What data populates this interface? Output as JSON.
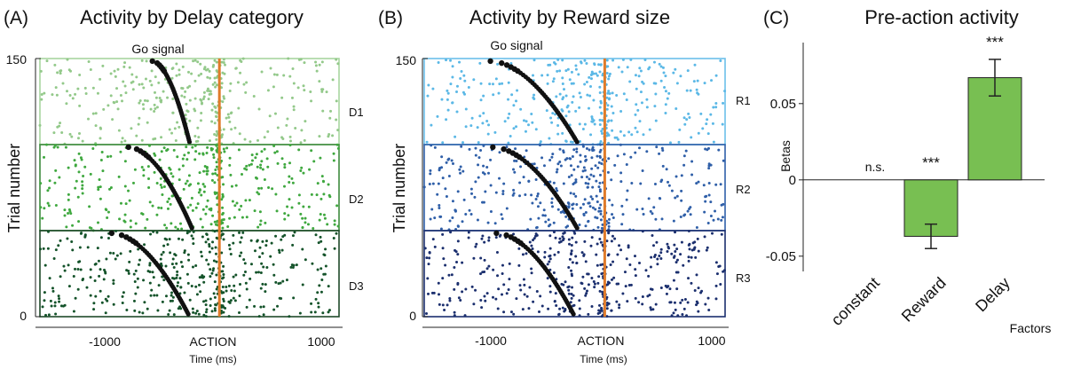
{
  "chart_data": [
    {
      "type": "scatter",
      "panel": "(A)",
      "title": "Activity by Delay category",
      "xlabel": "Time (ms)",
      "ylabel": "Trial number",
      "x_ticks": [
        "-1000",
        "ACTION",
        "1000"
      ],
      "y_ticks": [
        "0",
        "150"
      ],
      "xlim": [
        -1500,
        1000
      ],
      "ylim": [
        0,
        150
      ],
      "go_signal_label": "Go signal",
      "action_line_x": 0,
      "colors": {
        "action_line": "#e07b2a",
        "go_markers": "#111111"
      },
      "groups": [
        {
          "name": "D1",
          "trials": [
            100,
            150
          ],
          "color": "#93c98a",
          "go_signal_ms": [
            -560,
            -250
          ]
        },
        {
          "name": "D2",
          "trials": [
            50,
            100
          ],
          "color": "#3fa83f",
          "go_signal_ms": [
            -760,
            -230
          ]
        },
        {
          "name": "D3",
          "trials": [
            0,
            50
          ],
          "color": "#14532a",
          "go_signal_ms": [
            -900,
            -260
          ]
        }
      ]
    },
    {
      "type": "scatter",
      "panel": "(B)",
      "title": "Activity by Reward size",
      "xlabel": "Time (ms)",
      "ylabel": "Trial number",
      "x_ticks": [
        "-1000",
        "ACTION",
        "1000"
      ],
      "y_ticks": [
        "0",
        "150"
      ],
      "xlim": [
        -1500,
        1000
      ],
      "ylim": [
        0,
        150
      ],
      "go_signal_label": "Go signal",
      "action_line_x": 0,
      "colors": {
        "action_line": "#e07b2a",
        "go_markers": "#111111"
      },
      "groups": [
        {
          "name": "R1",
          "trials": [
            100,
            150
          ],
          "color": "#5bb8e6",
          "go_signal_ms": [
            -950,
            -230
          ]
        },
        {
          "name": "R2",
          "trials": [
            50,
            100
          ],
          "color": "#2f5fa8",
          "go_signal_ms": [
            -930,
            -230
          ]
        },
        {
          "name": "R3",
          "trials": [
            0,
            50
          ],
          "color": "#1b2f6e",
          "go_signal_ms": [
            -900,
            -260
          ]
        }
      ]
    },
    {
      "type": "bar",
      "panel": "(C)",
      "title": "Pre-action activity",
      "xlabel": "Factors",
      "ylabel": "Betas",
      "categories": [
        "constant",
        "Reward",
        "Delay"
      ],
      "values": [
        0,
        -0.037,
        0.067
      ],
      "errors": [
        0,
        0.008,
        0.012
      ],
      "significance": [
        "n.s.",
        "***",
        "***"
      ],
      "y_ticks": [
        "-0.05",
        "0",
        "0.05"
      ],
      "ylim": [
        -0.06,
        0.09
      ],
      "colors": {
        "bar": "#78bf52"
      }
    }
  ]
}
